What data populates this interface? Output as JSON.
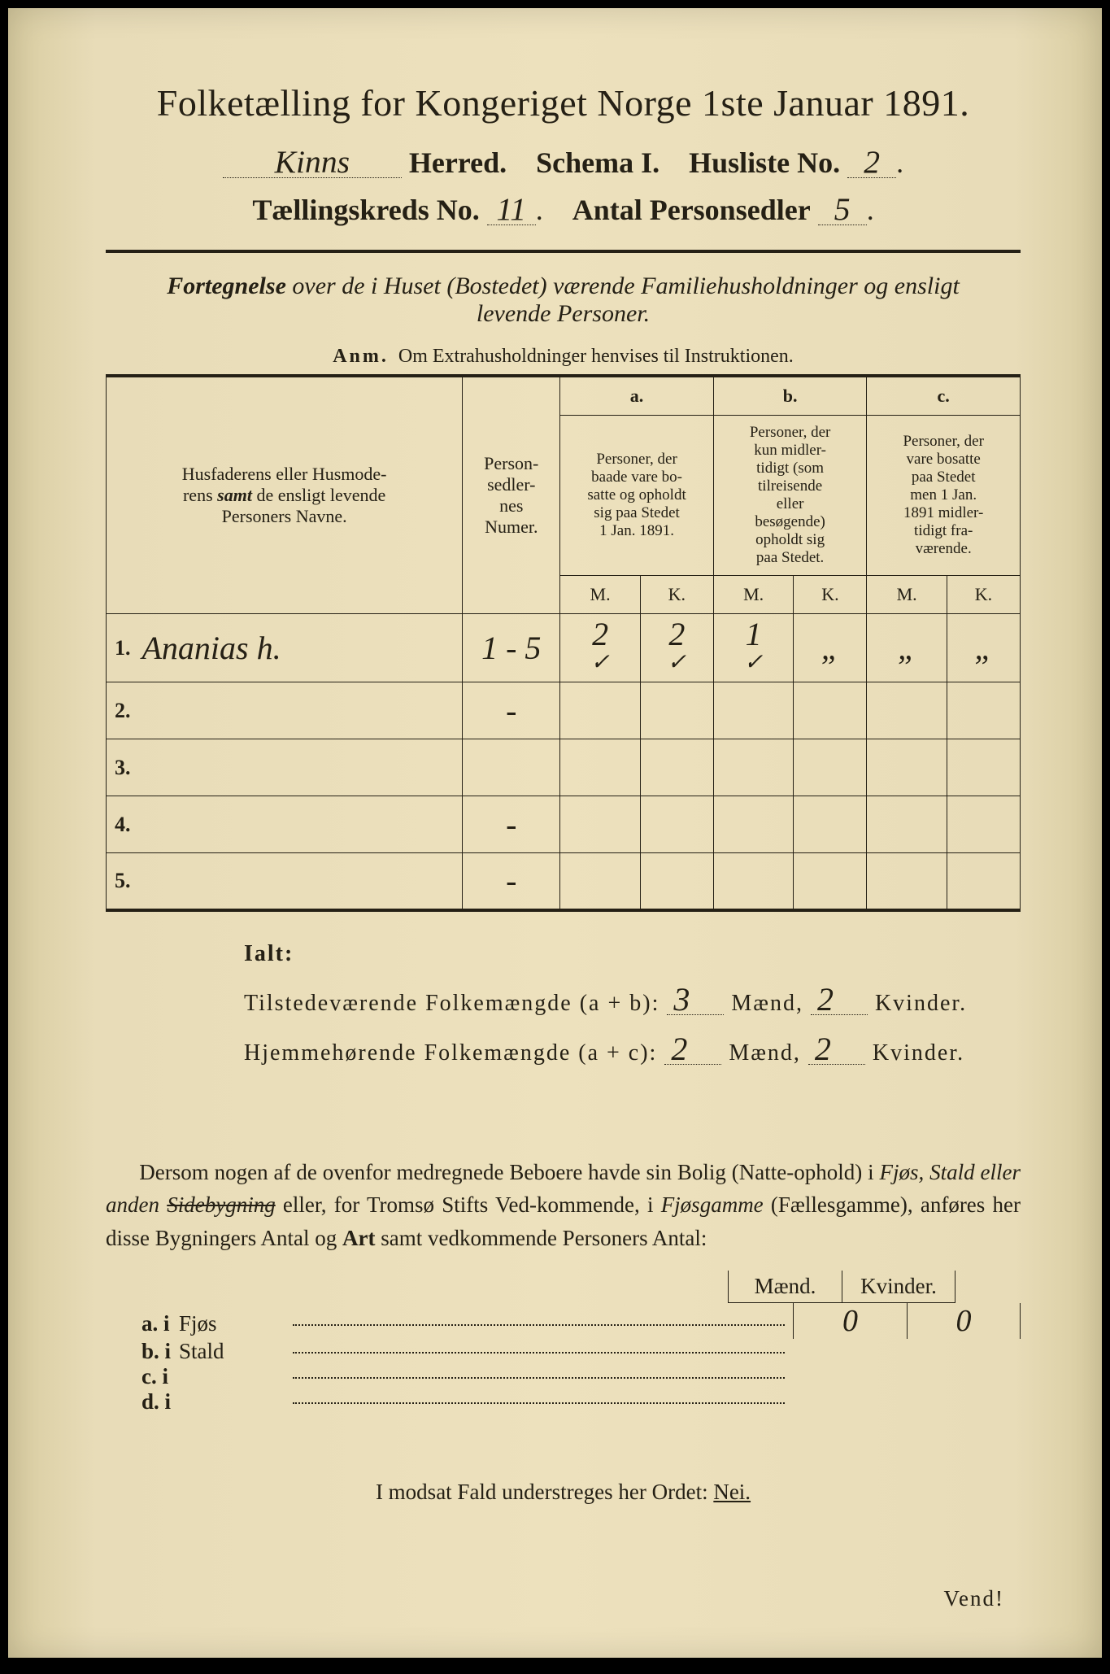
{
  "header": {
    "title": "Folketælling for Kongeriget Norge 1ste Januar 1891.",
    "herred_value": "Kinns",
    "herred_label": "Herred.",
    "schema_label": "Schema I.",
    "husliste_label": "Husliste No.",
    "husliste_value": "2",
    "kreds_label": "Tællingskreds No.",
    "kreds_value": "11",
    "antal_label": "Antal Personsedler",
    "antal_value": "5"
  },
  "subtitle": {
    "line1_a": "Fortegnelse",
    "line1_b": " over de i Huset (Bostedet) værende Familiehusholdninger og ensligt",
    "line2": "levende Personer.",
    "anm_label": "Anm.",
    "anm_text": "Om Extrahusholdninger henvises til Instruktionen."
  },
  "table": {
    "col_name": "Husfaderens eller Husmoderens samt de ensligt levende Personers Navne.",
    "col_num": "Person-sedler-nes Numer.",
    "col_a_label": "a.",
    "col_a": "Personer, der baade vare bosatte og opholdt sig paa Stedet 1 Jan. 1891.",
    "col_b_label": "b.",
    "col_b": "Personer, der kun midler-tidigt (som tilreisende eller besøgende) opholdt sig paa Stedet.",
    "col_c_label": "c.",
    "col_c": "Personer, der vare bosatte paa Stedet men 1 Jan. 1891 midler-tidigt fra-værende.",
    "M": "M.",
    "K": "K.",
    "rows": [
      {
        "n": "1.",
        "name": "Ananias h.",
        "num": "1 - 5",
        "aM": "2",
        "aK": "2",
        "bM": "1",
        "bK": "„",
        "cM": "„",
        "cK": "„",
        "aMchk": "✓",
        "aKchk": "✓",
        "bMchk": "✓"
      },
      {
        "n": "2.",
        "name": "",
        "num": "-",
        "aM": "",
        "aK": "",
        "bM": "",
        "bK": "",
        "cM": "",
        "cK": ""
      },
      {
        "n": "3.",
        "name": "",
        "num": "",
        "aM": "",
        "aK": "",
        "bM": "",
        "bK": "",
        "cM": "",
        "cK": ""
      },
      {
        "n": "4.",
        "name": "",
        "num": "-",
        "aM": "",
        "aK": "",
        "bM": "",
        "bK": "",
        "cM": "",
        "cK": ""
      },
      {
        "n": "5.",
        "name": "",
        "num": "-",
        "aM": "",
        "aK": "",
        "bM": "",
        "bK": "",
        "cM": "",
        "cK": ""
      }
    ]
  },
  "totals": {
    "ialt": "Ialt:",
    "row1_label": "Tilstedeværende Folkemængde (a + b):",
    "row1_m": "3",
    "row1_k": "2",
    "row2_label": "Hjemmehørende Folkemængde (a + c):",
    "row2_m": "2",
    "row2_k": "2",
    "maend": "Mænd,",
    "kvinder": "Kvinder."
  },
  "paragraph": {
    "text_a": "Dersom nogen af de ovenfor medregnede Beboere havde sin Bolig (Natte-ophold) i ",
    "it1": "Fjøs, Stald eller anden ",
    "strike": "Sidebygning",
    "text_b": " eller, for Tromsø Stifts Ved-kommende, i ",
    "it2": "Fjøsgamme",
    "text_c": " (Fællesgamme), anføres her disse Bygningers Antal og ",
    "bold1": "Art",
    "text_d": " samt vedkommende Personers Antal:"
  },
  "dwelling": {
    "header_m": "Mænd.",
    "header_k": "Kvinder.",
    "rows": [
      {
        "lab": "a. i",
        "txt": "Fjøs",
        "m": "0",
        "k": "0"
      },
      {
        "lab": "b. i",
        "txt": "Stald",
        "m": "",
        "k": ""
      },
      {
        "lab": "c. i",
        "txt": "",
        "m": "",
        "k": ""
      },
      {
        "lab": "d. i",
        "txt": "",
        "m": "",
        "k": ""
      }
    ]
  },
  "negation": {
    "text_a": "I modsat Fald understreges her Ordet: ",
    "nei": "Nei."
  },
  "vend": "Vend!"
}
